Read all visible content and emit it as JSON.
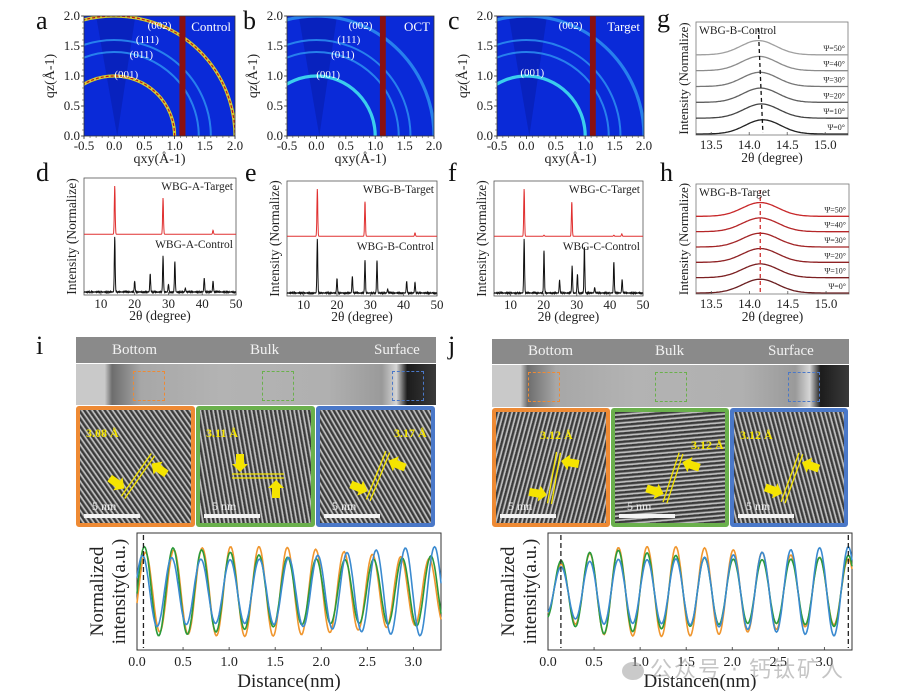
{
  "figure": {
    "panel_labels": [
      "a",
      "b",
      "c",
      "d",
      "e",
      "f",
      "g",
      "h",
      "i",
      "j"
    ]
  },
  "chart_data": [
    {
      "id": "a",
      "type": "heatmap",
      "title": "Control",
      "xlabel": "qxy(Å-1)",
      "ylabel": "qz(Å-1)",
      "xlim": [
        -0.5,
        2.0
      ],
      "ylim": [
        0.0,
        2.0
      ],
      "xticks": [
        "-0.5",
        "0.0",
        "0.5",
        "1.0",
        "1.5",
        "2.0"
      ],
      "yticks": [
        "0.0",
        "0.5",
        "1.0",
        "1.5",
        "2.0"
      ],
      "annotations": [
        "(002)",
        "(111)",
        "(011)",
        "(001)"
      ],
      "rings_q": [
        1.0,
        1.4,
        1.6,
        2.0
      ],
      "ring_intensity": [
        1.0,
        0.35,
        0.35,
        0.9
      ]
    },
    {
      "id": "b",
      "type": "heatmap",
      "title": "OCT",
      "xlabel": "qxy(Å-1)",
      "ylabel": "qz(Å-1)",
      "xlim": [
        -0.5,
        2.0
      ],
      "ylim": [
        0.0,
        2.0
      ],
      "xticks": [
        "-0.5",
        "0.0",
        "0.5",
        "1.0",
        "1.5",
        "2.0"
      ],
      "yticks": [
        "0.0",
        "0.5",
        "1.0",
        "1.5",
        "2.0"
      ],
      "annotations": [
        "(002)",
        "(111)",
        "(011)",
        "(001)"
      ],
      "rings_q": [
        1.0,
        1.4,
        1.6,
        2.0
      ],
      "ring_intensity": [
        0.6,
        0.3,
        0.3,
        0.5
      ]
    },
    {
      "id": "c",
      "type": "heatmap",
      "title": "Target",
      "xlabel": "qxy(Å-1)",
      "ylabel": "qz(Å-1)",
      "xlim": [
        -0.5,
        2.0
      ],
      "ylim": [
        0.0,
        2.0
      ],
      "xticks": [
        "-0.5",
        "0.0",
        "0.5",
        "1.0",
        "1.5",
        "2.0"
      ],
      "yticks": [
        "0.0",
        "0.5",
        "1.0",
        "1.5",
        "2.0"
      ],
      "annotations": [
        "(002)",
        "(001)"
      ],
      "rings_q": [
        1.0,
        1.4,
        1.6,
        2.0
      ],
      "ring_intensity": [
        0.55,
        0.25,
        0.25,
        0.45
      ]
    },
    {
      "id": "d",
      "type": "line",
      "xlabel": "2θ (degree)",
      "ylabel": "Intensity (Normalize)",
      "xlim": [
        5,
        50
      ],
      "xticks": [
        "10",
        "20",
        "30",
        "40",
        "50"
      ],
      "series": [
        {
          "name": "WBG-A-Target",
          "color": "#e03030",
          "peaks": [
            [
              14.1,
              1.0
            ],
            [
              28.4,
              0.75
            ],
            [
              43.2,
              0.08
            ]
          ]
        },
        {
          "name": "WBG-A-Control",
          "color": "#111111",
          "peaks": [
            [
              14.1,
              1.0
            ],
            [
              20.0,
              0.2
            ],
            [
              24.6,
              0.33
            ],
            [
              28.4,
              0.65
            ],
            [
              30.0,
              0.14
            ],
            [
              31.9,
              0.56
            ],
            [
              35.0,
              0.07
            ],
            [
              40.6,
              0.25
            ],
            [
              43.2,
              0.2
            ]
          ]
        }
      ]
    },
    {
      "id": "e",
      "type": "line",
      "xlabel": "2θ (degree)",
      "ylabel": "Intensity (Normalize)",
      "xlim": [
        5,
        50
      ],
      "xticks": [
        "10",
        "20",
        "30",
        "40",
        "50"
      ],
      "series": [
        {
          "name": "WBG-B-Target",
          "color": "#e03030",
          "peaks": [
            [
              14.1,
              1.0
            ],
            [
              28.4,
              0.73
            ],
            [
              43.4,
              0.07
            ]
          ]
        },
        {
          "name": "WBG-B-Control",
          "color": "#111111",
          "peaks": [
            [
              14.1,
              1.0
            ],
            [
              20.0,
              0.27
            ],
            [
              24.6,
              0.31
            ],
            [
              28.4,
              0.6
            ],
            [
              32.0,
              0.6
            ],
            [
              35.2,
              0.07
            ],
            [
              40.9,
              0.22
            ],
            [
              43.4,
              0.2
            ]
          ]
        }
      ]
    },
    {
      "id": "f",
      "type": "line",
      "xlabel": "2θ (degree)",
      "ylabel": "Intensity (Normalize)",
      "xlim": [
        5,
        50
      ],
      "xticks": [
        "10",
        "20",
        "30",
        "40",
        "50"
      ],
      "series": [
        {
          "name": "WBG-C-Target",
          "color": "#e03030",
          "peaks": [
            [
              14.1,
              1.0
            ],
            [
              20.1,
              0.02
            ],
            [
              28.5,
              0.72
            ],
            [
              41.2,
              0.02
            ],
            [
              43.6,
              0.05
            ]
          ]
        },
        {
          "name": "WBG-C-Control",
          "color": "#111111",
          "peaks": [
            [
              14.1,
              1.0
            ],
            [
              20.1,
              0.78
            ],
            [
              24.8,
              0.24
            ],
            [
              28.6,
              0.5
            ],
            [
              30.2,
              0.35
            ],
            [
              32.3,
              0.85
            ],
            [
              35.4,
              0.1
            ],
            [
              41.2,
              0.58
            ],
            [
              43.7,
              0.25
            ]
          ]
        }
      ]
    },
    {
      "id": "g",
      "type": "line",
      "title": "WBG-B-Control",
      "xlabel": "2θ (degree)",
      "ylabel": "Intensity (Normalize)",
      "xlim": [
        13.3,
        15.3
      ],
      "xticks": [
        "13.5",
        "14.0",
        "14.5",
        "15.0"
      ],
      "series_labels": [
        "Ψ=50°",
        "Ψ=40°",
        "Ψ=30°",
        "Ψ=20°",
        "Ψ=10°",
        "Ψ=0°"
      ],
      "peak_centers": [
        14.12,
        14.13,
        14.14,
        14.15,
        14.16,
        14.18
      ],
      "colors": [
        "#a0a0a0",
        "#8c8c8c",
        "#777777",
        "#5f5f5f",
        "#444444",
        "#222222"
      ],
      "guide_line": "dashed black"
    },
    {
      "id": "h",
      "type": "line",
      "title": "WBG-B-Target",
      "xlabel": "2θ (degree)",
      "ylabel": "Intensity (Normalize)",
      "xlim": [
        13.3,
        15.3
      ],
      "xticks": [
        "13.5",
        "14.0",
        "14.5",
        "15.0"
      ],
      "series_labels": [
        "Ψ=50°",
        "Ψ=40°",
        "Ψ=30°",
        "Ψ=20°",
        "Ψ=10°",
        "Ψ=0°"
      ],
      "peak_centers": [
        14.14,
        14.14,
        14.14,
        14.14,
        14.14,
        14.14
      ],
      "colors": [
        "#c8282a",
        "#b52628",
        "#a22426",
        "#8f2224",
        "#7c2022",
        "#6a1e20"
      ],
      "guide_line": "dashed red"
    },
    {
      "id": "i-profile",
      "type": "line",
      "xlabel": "Distance(nm)",
      "ylabel": "Normalized intensity(a.u.)",
      "xlim": [
        0.0,
        3.3
      ],
      "xticks": [
        "0.0",
        "0.5",
        "1.0",
        "1.5",
        "2.0",
        "2.5",
        "3.0"
      ],
      "series": [
        {
          "name": "Bottom",
          "color": "#f0962e",
          "period_nm": 0.308,
          "phase": 0.4
        },
        {
          "name": "Bulk",
          "color": "#2a9a3a",
          "period_nm": 0.311,
          "phase": 0.08
        },
        {
          "name": "Surface",
          "color": "#3a8ad0",
          "period_nm": 0.317,
          "phase": 0.06
        }
      ],
      "guide_x": [
        0.07
      ]
    },
    {
      "id": "j-profile",
      "type": "line",
      "xlabel": "Distancen(nm)",
      "ylabel": "Normalized intensity(a.u.)",
      "xlim": [
        0.0,
        3.3
      ],
      "xticks": [
        "0.0",
        "0.5",
        "1.0",
        "1.5",
        "2.0",
        "2.5",
        "3.0"
      ],
      "series": [
        {
          "name": "Bottom",
          "color": "#f0962e",
          "period_nm": 0.312,
          "phase": 0.14
        },
        {
          "name": "Bulk",
          "color": "#2a9a3a",
          "period_nm": 0.312,
          "phase": 0.14
        },
        {
          "name": "Surface",
          "color": "#3a8ad0",
          "period_nm": 0.312,
          "phase": 0.14
        }
      ],
      "guide_x": [
        0.14,
        3.26
      ]
    }
  ],
  "tem": {
    "i": {
      "header": [
        "Bottom",
        "Bulk",
        "Surface"
      ],
      "insets": [
        {
          "name": "Bottom",
          "color": "#ee8a34",
          "d_spacing": "3.08 Å",
          "scale": "5 nm"
        },
        {
          "name": "Bulk",
          "color": "#6ab04c",
          "d_spacing": "3.11 Å",
          "scale": "5 nm"
        },
        {
          "name": "Surface",
          "color": "#4a78c8",
          "d_spacing": "3.17 Å",
          "scale": "5 nm"
        }
      ]
    },
    "j": {
      "header": [
        "Bottom",
        "Bulk",
        "Surface"
      ],
      "insets": [
        {
          "name": "Bottom",
          "color": "#ee8a34",
          "d_spacing": "3.12 Å",
          "scale": "5 nm"
        },
        {
          "name": "Bulk",
          "color": "#6ab04c",
          "d_spacing": "3.12 Å",
          "scale": "5 nm"
        },
        {
          "name": "Surface",
          "color": "#4a78c8",
          "d_spacing": "3.12 Å",
          "scale": "5 nm"
        }
      ]
    }
  },
  "watermark": "公众号 · 钙钛矿人"
}
